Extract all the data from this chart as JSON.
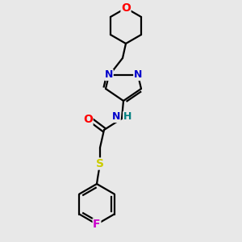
{
  "background_color": "#e8e8e8",
  "bond_color": "#000000",
  "atom_colors": {
    "O": "#ff0000",
    "N": "#0000cc",
    "NH": "#0000cc",
    "H": "#008080",
    "S": "#cccc00",
    "F": "#cc00cc",
    "C": "#000000"
  },
  "figsize": [
    3.0,
    3.0
  ],
  "dpi": 100
}
